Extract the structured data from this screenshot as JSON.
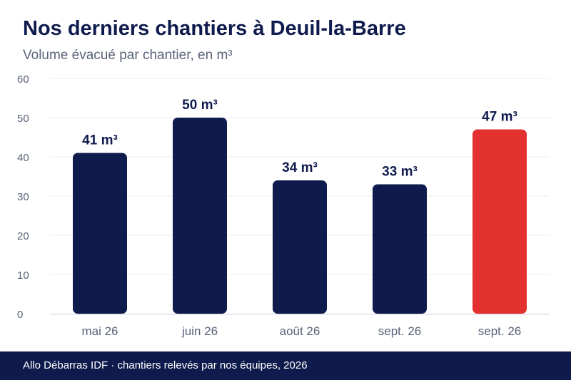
{
  "header": {
    "title": "Nos derniers chantiers à Deuil-la-Barre",
    "subtitle": "Volume évacué par chantier, en m³"
  },
  "chart_data": {
    "type": "bar",
    "title": "Nos derniers chantiers à Deuil-la-Barre",
    "subtitle": "Volume évacué par chantier, en m³",
    "xlabel": "",
    "ylabel": "",
    "ylim": [
      0,
      60
    ],
    "yticks": [
      0,
      10,
      20,
      30,
      40,
      50,
      60
    ],
    "grid": true,
    "legend": "none",
    "categories": [
      "mai 26",
      "juin 26",
      "août 26",
      "sept. 26",
      "sept. 26"
    ],
    "values": [
      41,
      50,
      34,
      33,
      47
    ],
    "data_labels": [
      "41 m³",
      "50 m³",
      "34 m³",
      "33 m³",
      "47 m³"
    ],
    "highlight_index": 4,
    "colors": {
      "bar": "#0f1b4d",
      "highlight": "#e3312f",
      "grid": "#ececf0",
      "axis": "#c9ccd6",
      "tick_label": "#5a6278",
      "data_label": "#0f1b4d"
    }
  },
  "footer": {
    "text": "Allo Débarras IDF · chantiers relevés par nos équipes, 2026",
    "background": "#0f1b4d"
  }
}
